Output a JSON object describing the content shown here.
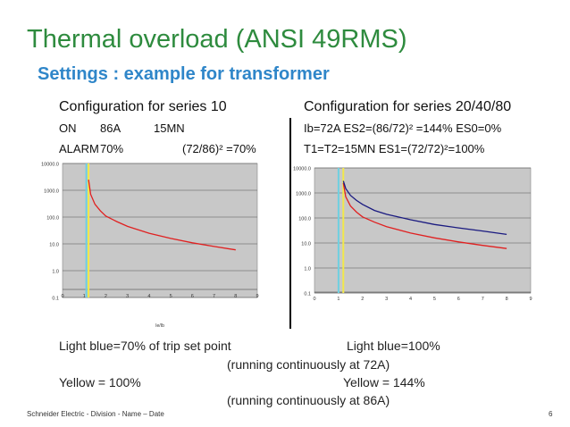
{
  "slide": {
    "title": "Thermal overload (ANSI 49RMS)",
    "subtitle": "Settings : example for transformer",
    "footer": "Schneider Electric - Division - Name – Date",
    "page_number": "6"
  },
  "left": {
    "heading": "Configuration for series 10",
    "row1": [
      "ON",
      "86A",
      "15MN"
    ],
    "row2": [
      "ALARM",
      "70%",
      "(72/86)² =70%"
    ]
  },
  "right": {
    "heading": "Configuration for series 20/40/80",
    "row1": "Ib=72A   ES2=(86/72)² =144% ES0=0%",
    "row2": "T1=T2=15MN ES1=(72/72)²=100%"
  },
  "notes": {
    "left1": "Light blue=70% of trip set point",
    "right1": "Light blue=100%",
    "center1": "(running continuously at 72A)",
    "left2": "Yellow = 100%",
    "right2": "Yellow = 144%",
    "center2": "(running continuously at 86A)"
  },
  "colors": {
    "title": "#2e8b3e",
    "subtitle": "#2f86c9",
    "plot_bg": "#c8c8c8",
    "curve_red": "#e02020",
    "curve_blue": "#1a1a80",
    "marker_light_blue": "#6fd0e0",
    "marker_yellow": "#f2e84a"
  },
  "chart_data": [
    {
      "type": "line",
      "title": "",
      "xlabel": "Ie/Ib",
      "y_scale": "log",
      "ytick_labels": [
        "10000.0",
        "1000.0",
        "100.0",
        "10.0",
        "1.0",
        "0.1"
      ],
      "ytick_values": [
        10000,
        1000,
        100,
        10,
        1,
        0.1
      ],
      "xtick_labels": [
        "0",
        "1",
        "2",
        "3",
        "4",
        "5",
        "6",
        "7",
        "8",
        "9"
      ],
      "xlim": [
        0,
        9
      ],
      "ylim": [
        0.1,
        10000
      ],
      "grid": true,
      "vertical_markers": [
        {
          "x": 1.1,
          "color": "light blue"
        },
        {
          "x": 1.2,
          "color": "yellow"
        }
      ],
      "series": [
        {
          "color": "red",
          "x": [
            1.2,
            1.3,
            1.5,
            1.75,
            2,
            2.5,
            3,
            4,
            5,
            6,
            7,
            8
          ],
          "y": [
            2500,
            700,
            300,
            170,
            110,
            68,
            45,
            25,
            16,
            11,
            8,
            6
          ]
        }
      ]
    },
    {
      "type": "line",
      "title": "",
      "xlabel": "",
      "y_scale": "log",
      "ytick_labels": [
        "10000.0",
        "1000.0",
        "100.0",
        "10.0",
        "1.0",
        "0.1"
      ],
      "ytick_values": [
        10000,
        1000,
        100,
        10,
        1,
        0.1
      ],
      "xtick_labels": [
        "0",
        "1",
        "2",
        "3",
        "4",
        "5",
        "6",
        "7",
        "8",
        "9"
      ],
      "xlim": [
        0,
        9
      ],
      "ylim": [
        0.1,
        10000
      ],
      "grid": true,
      "vertical_markers": [
        {
          "x": 1.0,
          "color": "light blue"
        },
        {
          "x": 1.2,
          "color": "yellow"
        }
      ],
      "series": [
        {
          "color": "red",
          "x": [
            1.2,
            1.3,
            1.5,
            1.75,
            2,
            2.5,
            3,
            4,
            5,
            6,
            7,
            8
          ],
          "y": [
            2500,
            700,
            300,
            170,
            110,
            68,
            45,
            25,
            16,
            11,
            8,
            6
          ]
        },
        {
          "color": "dark blue",
          "x": [
            1.2,
            1.3,
            1.5,
            1.75,
            2,
            2.5,
            3,
            4,
            5,
            6,
            7,
            8
          ],
          "y": [
            3000,
            1500,
            800,
            500,
            350,
            200,
            140,
            85,
            55,
            40,
            30,
            22
          ]
        }
      ]
    }
  ]
}
